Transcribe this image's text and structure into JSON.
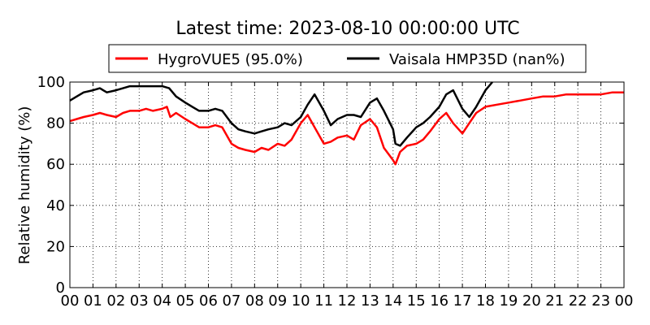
{
  "chart_data": {
    "type": "line",
    "title": "Latest time: 2023-08-10 00:00:00 UTC",
    "xlabel": "",
    "ylabel": "Relative humidity (%)",
    "xlim": [
      0,
      24
    ],
    "ylim": [
      0,
      100
    ],
    "grid": true,
    "legend_position": "top",
    "x_tick_labels": [
      "00",
      "01",
      "02",
      "03",
      "04",
      "05",
      "06",
      "07",
      "08",
      "09",
      "10",
      "11",
      "12",
      "13",
      "14",
      "15",
      "16",
      "17",
      "18",
      "19",
      "20",
      "21",
      "22",
      "23",
      "00"
    ],
    "y_ticks": [
      0,
      20,
      40,
      60,
      80,
      100
    ],
    "series": [
      {
        "name": "HygroVUE5 (95.0%)",
        "color": "#ff0000",
        "x": [
          0,
          0.3,
          0.6,
          1,
          1.3,
          1.6,
          2,
          2.3,
          2.6,
          3,
          3.3,
          3.6,
          4,
          4.2,
          4.35,
          4.6,
          5,
          5.3,
          5.6,
          6,
          6.3,
          6.6,
          7,
          7.3,
          7.6,
          8,
          8.3,
          8.6,
          9,
          9.3,
          9.6,
          10,
          10.3,
          10.6,
          11,
          11.3,
          11.6,
          12,
          12.3,
          12.6,
          13,
          13.3,
          13.6,
          14,
          14.1,
          14.3,
          14.6,
          15,
          15.3,
          15.6,
          16,
          16.3,
          16.6,
          17,
          17.3,
          17.6,
          18,
          18.5,
          19,
          19.5,
          20,
          20.5,
          21,
          21.5,
          22,
          22.5,
          23,
          23.5,
          24
        ],
        "values": [
          81,
          82,
          83,
          84,
          85,
          84,
          83,
          85,
          86,
          86,
          87,
          86,
          87,
          88,
          83,
          85,
          82,
          80,
          78,
          78,
          79,
          78,
          70,
          68,
          67,
          66,
          68,
          67,
          70,
          69,
          72,
          80,
          84,
          78,
          70,
          71,
          73,
          74,
          72,
          79,
          82,
          78,
          68,
          62,
          60,
          66,
          69,
          70,
          72,
          76,
          82,
          85,
          80,
          75,
          80,
          85,
          88,
          89,
          90,
          91,
          92,
          93,
          93,
          94,
          94,
          94,
          94,
          95,
          95
        ]
      },
      {
        "name": "Vaisala HMP35D (nan%)",
        "color": "#000000",
        "x": [
          0,
          0.3,
          0.6,
          1,
          1.3,
          1.6,
          2,
          2.3,
          2.6,
          3,
          3.3,
          3.6,
          4,
          4.3,
          4.6,
          5,
          5.3,
          5.6,
          6,
          6.3,
          6.6,
          7,
          7.3,
          7.6,
          8,
          8.3,
          8.6,
          9,
          9.3,
          9.6,
          10,
          10.3,
          10.6,
          11,
          11.3,
          11.6,
          12,
          12.3,
          12.6,
          13,
          13.3,
          13.6,
          14,
          14.1,
          14.3,
          14.6,
          15,
          15.3,
          15.6,
          16,
          16.3,
          16.6,
          17,
          17.3,
          17.6,
          18,
          18.3
        ],
        "values": [
          91,
          93,
          95,
          96,
          97,
          95,
          96,
          97,
          98,
          98,
          98,
          98,
          98,
          97,
          93,
          90,
          88,
          86,
          86,
          87,
          86,
          80,
          77,
          76,
          75,
          76,
          77,
          78,
          80,
          79,
          83,
          89,
          94,
          86,
          79,
          82,
          84,
          84,
          83,
          90,
          92,
          86,
          77,
          70,
          69,
          73,
          78,
          80,
          83,
          88,
          94,
          96,
          87,
          83,
          88,
          96,
          100
        ]
      }
    ]
  }
}
